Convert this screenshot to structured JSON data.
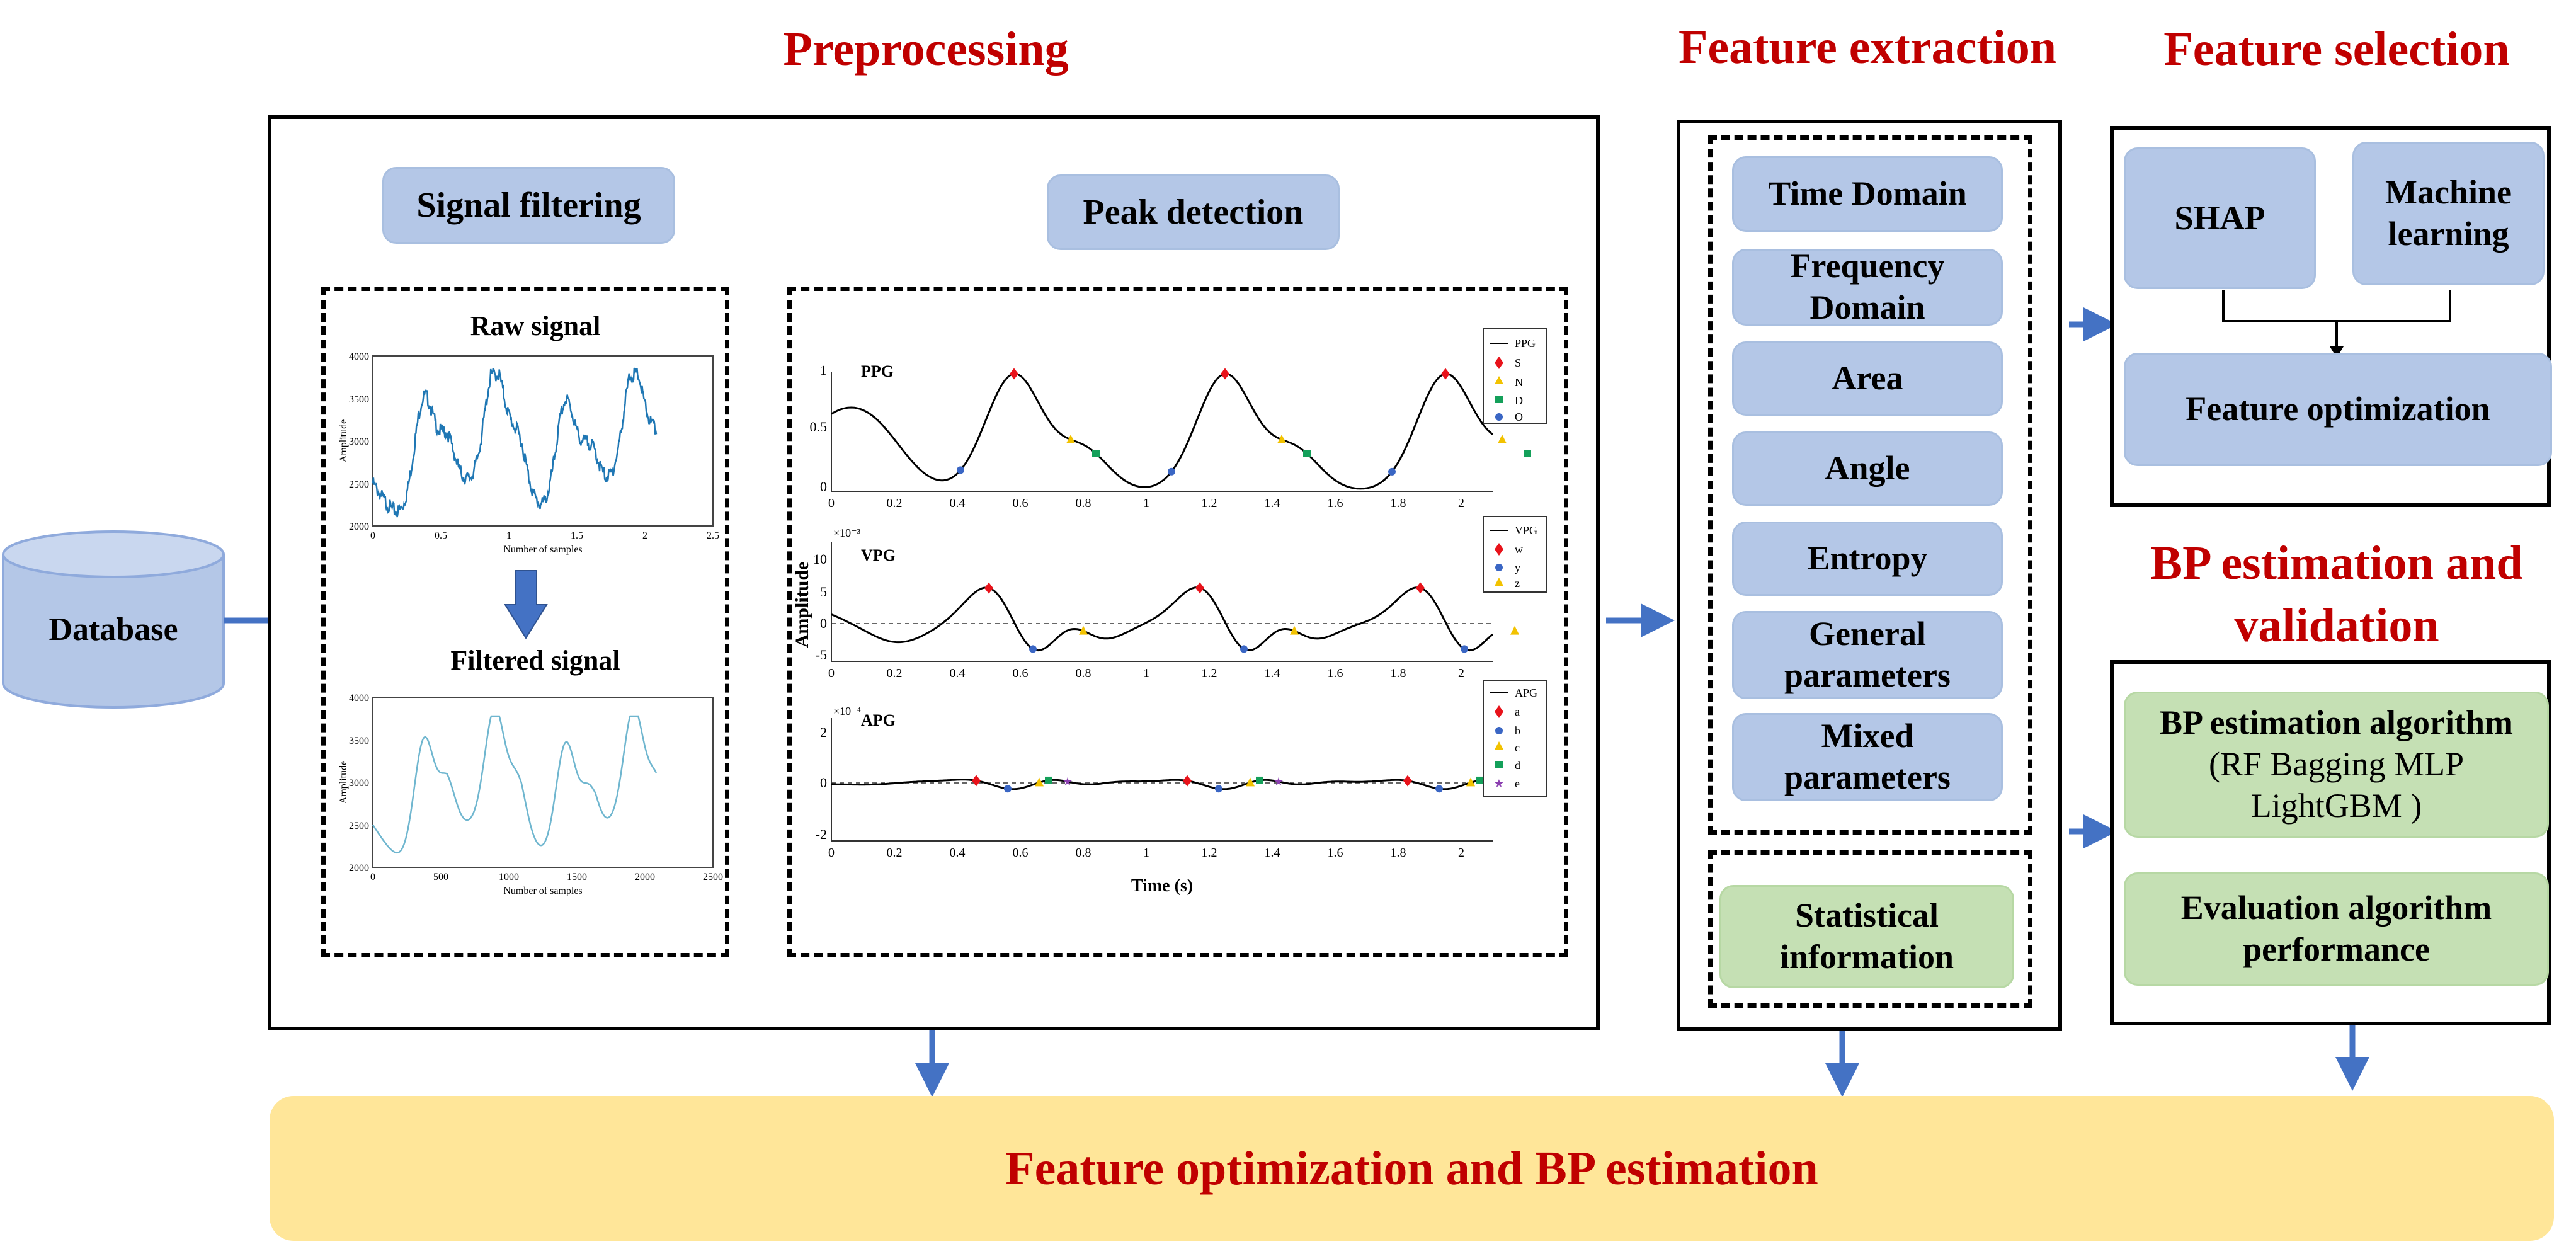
{
  "stages": {
    "preprocessing": "Preprocessing",
    "feature_extraction": "Feature extraction",
    "feature_selection": "Feature selection",
    "bp_estimation": "BP estimation and validation"
  },
  "database": {
    "label": "Database"
  },
  "preprocessing": {
    "signal_filtering": "Signal filtering",
    "peak_detection": "Peak detection",
    "raw_signal": {
      "title": "Raw signal",
      "ylabel": "Amplitude",
      "xlabel": "Number of samples",
      "y_ticks": [
        "4000",
        "3500",
        "3000",
        "2500",
        "2000"
      ],
      "x_ticks": [
        "0",
        "0.5",
        "1",
        "1.5",
        "2",
        "2.5"
      ],
      "x_scale_label": "×10³"
    },
    "filtered_signal": {
      "title": "Filtered signal",
      "ylabel": "Amplitude",
      "xlabel": "Number of samples",
      "y_ticks": [
        "4000",
        "3500",
        "3000",
        "2500",
        "2000"
      ],
      "x_ticks": [
        "0",
        "500",
        "1000",
        "1500",
        "2000",
        "2500"
      ]
    },
    "peak_plots": {
      "shared_ylabel": "Amplitude",
      "xlabel": "Time (s)",
      "x_ticks": [
        "0",
        "0.2",
        "0.4",
        "0.6",
        "0.8",
        "1",
        "1.2",
        "1.4",
        "1.6",
        "1.8",
        "2"
      ],
      "ppg": {
        "label": "PPG",
        "y_ticks": [
          "1",
          "0.5",
          "0"
        ],
        "legend": [
          "PPG",
          "S",
          "N",
          "D",
          "O"
        ]
      },
      "vpg": {
        "label": "VPG",
        "exponent": "×10⁻³",
        "y_ticks": [
          "10",
          "5",
          "0",
          "-5"
        ],
        "legend": [
          "VPG",
          "w",
          "y",
          "z"
        ]
      },
      "apg": {
        "label": "APG",
        "exponent": "×10⁻⁴",
        "y_ticks": [
          "2",
          "0",
          "-2"
        ],
        "legend": [
          "APG",
          "a",
          "b",
          "c",
          "d",
          "e"
        ]
      }
    }
  },
  "feature_extraction": {
    "items": [
      "Time Domain",
      "Frequency Domain",
      "Area",
      "Angle",
      "Entropy",
      "General parameters",
      "Mixed parameters"
    ],
    "statistical": "Statistical information"
  },
  "feature_selection": {
    "shap": "SHAP",
    "ml": "Machine learning",
    "optimization": "Feature optimization"
  },
  "bp_validation": {
    "algorithm_title": "BP estimation algorithm",
    "algorithm_detail": "(RF Bagging MLP LightGBM )",
    "evaluation": "Evaluation algorithm performance"
  },
  "footer": {
    "label": "Feature optimization and BP estimation"
  },
  "colors": {
    "title_red": "#c00000",
    "arrow_blue": "#4472c4",
    "box_blue": "#b4c7e7",
    "box_green": "#c5e0b4",
    "footer_yellow": "#ffe699",
    "raw_line": "#1f77b4",
    "filtered_line": "#6fb6cf",
    "marker_red": "#e8121a",
    "marker_yellow": "#f2c200",
    "marker_green": "#14a05a",
    "marker_blue": "#3a66c4",
    "marker_purple": "#8b3fb0"
  }
}
